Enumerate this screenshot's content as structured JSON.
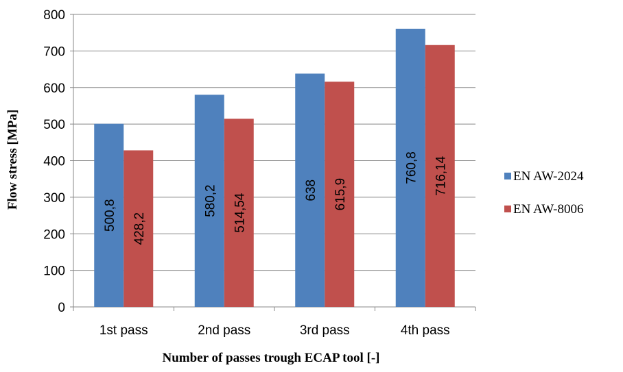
{
  "chart_data": {
    "type": "bar",
    "categories": [
      "1st pass",
      "2nd pass",
      "3rd pass",
      "4th pass"
    ],
    "series": [
      {
        "name": "EN AW-2024",
        "values": [
          500.8,
          580.2,
          638,
          760.8
        ],
        "labels": [
          "500,8",
          "580,2",
          "638",
          "760,8"
        ],
        "color": "#4f81bd"
      },
      {
        "name": "EN AW-8006",
        "values": [
          428.2,
          514.54,
          615.9,
          716.14
        ],
        "labels": [
          "428,2",
          "514,54",
          "615,9",
          "716,14"
        ],
        "color": "#c0504d"
      }
    ],
    "xlabel": "Number of passes trough ECAP tool [-]",
    "ylabel": "Flow stress [MPa]",
    "ylim": [
      0,
      800
    ],
    "yticks": [
      0,
      100,
      200,
      300,
      400,
      500,
      600,
      700,
      800
    ],
    "grid": true,
    "legend_position": "right"
  }
}
